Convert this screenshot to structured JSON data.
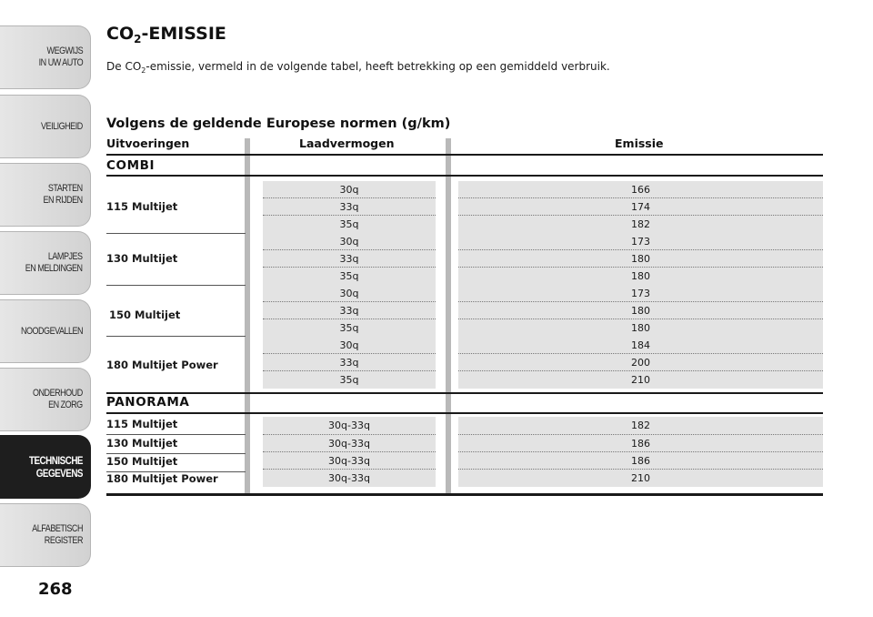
{
  "sidebar": {
    "tabs": [
      {
        "label": "WEGWIJS\nIN UW AUTO",
        "active": false
      },
      {
        "label": "VEILIGHEID",
        "active": false
      },
      {
        "label": "STARTEN\nEN RIJDEN",
        "active": false
      },
      {
        "label": "LAMPJES\nEN MELDINGEN",
        "active": false
      },
      {
        "label": "NOODGEVALLEN",
        "active": false
      },
      {
        "label": "ONDERHOUD\nEN ZORG",
        "active": false
      },
      {
        "label": "TECHNISCHE\nGEGEVENS",
        "active": true
      },
      {
        "label": "ALFABETISCH\nREGISTER",
        "active": false
      }
    ],
    "page_number": "268"
  },
  "heading": {
    "prefix": "CO",
    "sub": "2",
    "suffix": "-EMISSIE"
  },
  "intro": {
    "prefix": "De CO",
    "sub": "2",
    "suffix": "-emissie, vermeld in de volgende tabel, heeft betrekking op een gemiddeld verbruik."
  },
  "table": {
    "title": "Volgens de geldende Europese normen (g/km)",
    "headers": {
      "version": "Uitvoeringen",
      "load": "Laadvermogen",
      "emission": "Emissie"
    },
    "combi": {
      "label": "COMBI",
      "models": [
        {
          "name": "115 Multijet",
          "rows": [
            {
              "load": "30q",
              "emission": "166"
            },
            {
              "load": "33q",
              "emission": "174"
            },
            {
              "load": "35q",
              "emission": "182"
            }
          ]
        },
        {
          "name": "130 Multijet",
          "rows": [
            {
              "load": "30q",
              "emission": "173"
            },
            {
              "load": "33q",
              "emission": "180"
            },
            {
              "load": "35q",
              "emission": "180"
            }
          ]
        },
        {
          "name": "150 Multijet",
          "rows": [
            {
              "load": "30q",
              "emission": "173"
            },
            {
              "load": "33q",
              "emission": "180"
            },
            {
              "load": "35q",
              "emission": "180"
            }
          ]
        },
        {
          "name": "180 Multijet Power",
          "rows": [
            {
              "load": "30q",
              "emission": "184"
            },
            {
              "load": "33q",
              "emission": "200"
            },
            {
              "load": "35q",
              "emission": "210"
            }
          ]
        }
      ]
    },
    "panorama": {
      "label": "PANORAMA",
      "rows": [
        {
          "name": "115 Multijet",
          "load": "30q-33q",
          "emission": "182"
        },
        {
          "name": "130 Multijet",
          "load": "30q-33q",
          "emission": "186"
        },
        {
          "name": "150 Multijet",
          "load": "30q-33q",
          "emission": "186"
        },
        {
          "name": "180 Multijet Power",
          "load": "30q-33q",
          "emission": "210"
        }
      ]
    }
  }
}
